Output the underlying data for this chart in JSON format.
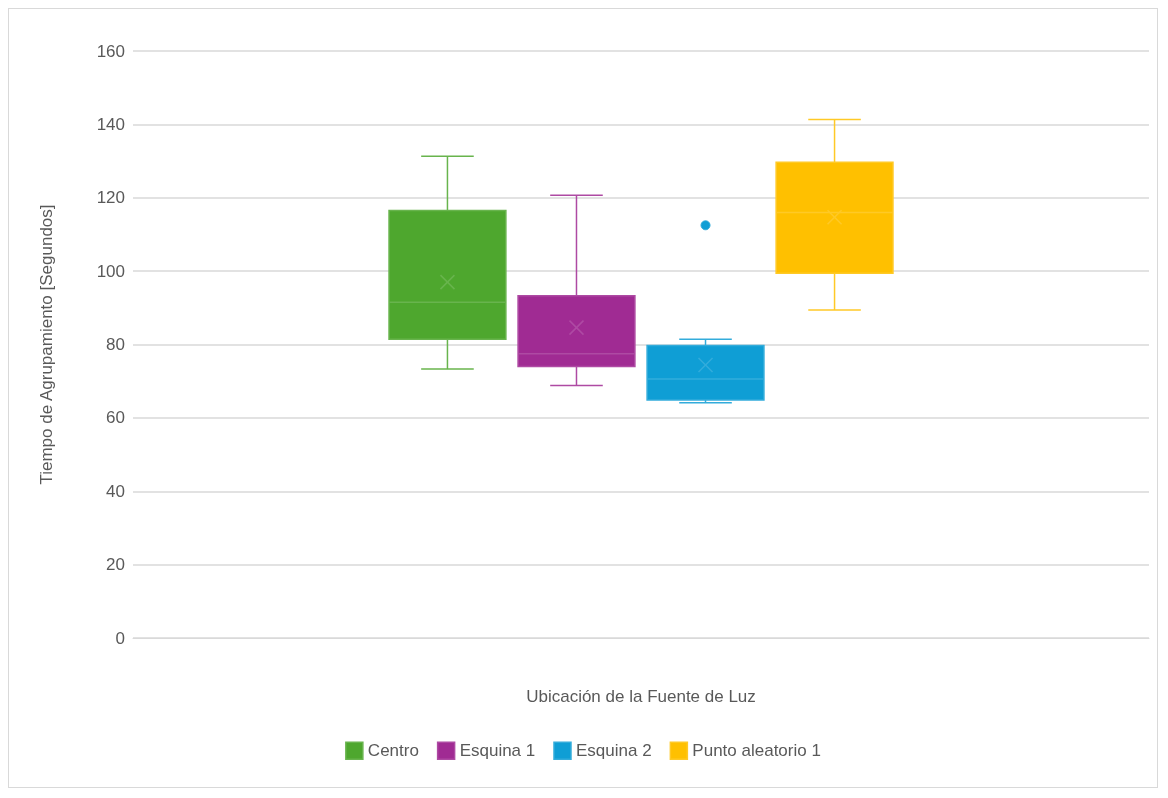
{
  "chart_data": {
    "type": "box",
    "xlabel": "Ubicación de la Fuente de Luz",
    "ylabel": "Tiempo de Agrupamiento [Segundos]",
    "categories": [
      null
    ],
    "ylim": [
      0,
      160
    ],
    "yticks": [
      0,
      20,
      40,
      60,
      80,
      100,
      120,
      140,
      160
    ],
    "grid": "y",
    "legend": "bottom",
    "series": [
      {
        "name": "Centro",
        "color": "#4ea72e",
        "boxes": [
          {
            "low": 73.3,
            "q1": 81.4,
            "median": 91.5,
            "q3": 116.5,
            "high": 131.3,
            "mean": 97
          }
        ]
      },
      {
        "name": "Esquina 1",
        "color": "#a02b93",
        "boxes": [
          {
            "low": 68.8,
            "q1": 74,
            "median": 77.5,
            "q3": 93.3,
            "high": 120.7,
            "mean": 84.6
          }
        ]
      },
      {
        "name": "Esquina 2",
        "color": "#0f9ed5",
        "boxes": [
          {
            "low": 64.1,
            "q1": 64.9,
            "median": 70.6,
            "q3": 79.7,
            "high": 81.4,
            "mean": 74.4,
            "outliers": [
              112.5
            ]
          }
        ]
      },
      {
        "name": "Punto aleatorio 1",
        "color": "#ffc000",
        "boxes": [
          {
            "low": 89.4,
            "q1": 99.4,
            "median": 116,
            "q3": 129.7,
            "high": 141.3,
            "mean": 114.7
          }
        ]
      }
    ]
  }
}
